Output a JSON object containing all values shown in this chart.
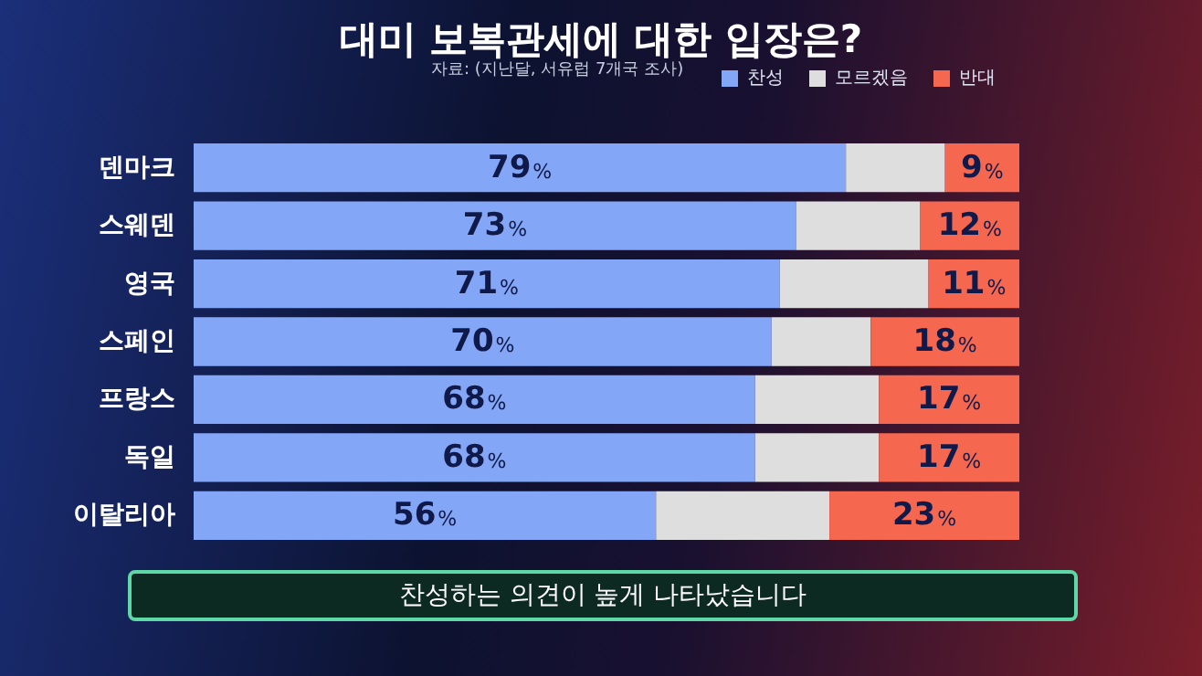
{
  "chart_data": {
    "type": "bar",
    "orientation": "horizontal",
    "stacked": true,
    "title": "대미 보복관세에 대한 입장은?",
    "categories": [
      "덴마크",
      "스웨덴",
      "영국",
      "스페인",
      "프랑스",
      "독일",
      "이탈리아"
    ],
    "series": [
      {
        "name": "찬성",
        "color": "#84a6f6",
        "values": [
          79,
          73,
          71,
          70,
          68,
          68,
          56
        ],
        "value_labels": [
          "79%",
          "73%",
          "71%",
          "70%",
          "68%",
          "68%",
          "56%"
        ]
      },
      {
        "name": "모르겠음",
        "color": "#dedede",
        "values": [
          12,
          15,
          18,
          12,
          15,
          15,
          21
        ]
      },
      {
        "name": "반대",
        "color": "#f6674f",
        "values": [
          9,
          12,
          11,
          18,
          17,
          17,
          23
        ],
        "value_labels": [
          "9%",
          "12%",
          "11%",
          "18%",
          "17%",
          "17%",
          "23%"
        ]
      }
    ],
    "xlim": [
      0,
      100
    ],
    "legend": "top right",
    "annotations": [
      "자료: (지난달, 서유럽 7개국 조사)",
      "찬성하는 의견이 높게 나타났습니다"
    ]
  }
}
